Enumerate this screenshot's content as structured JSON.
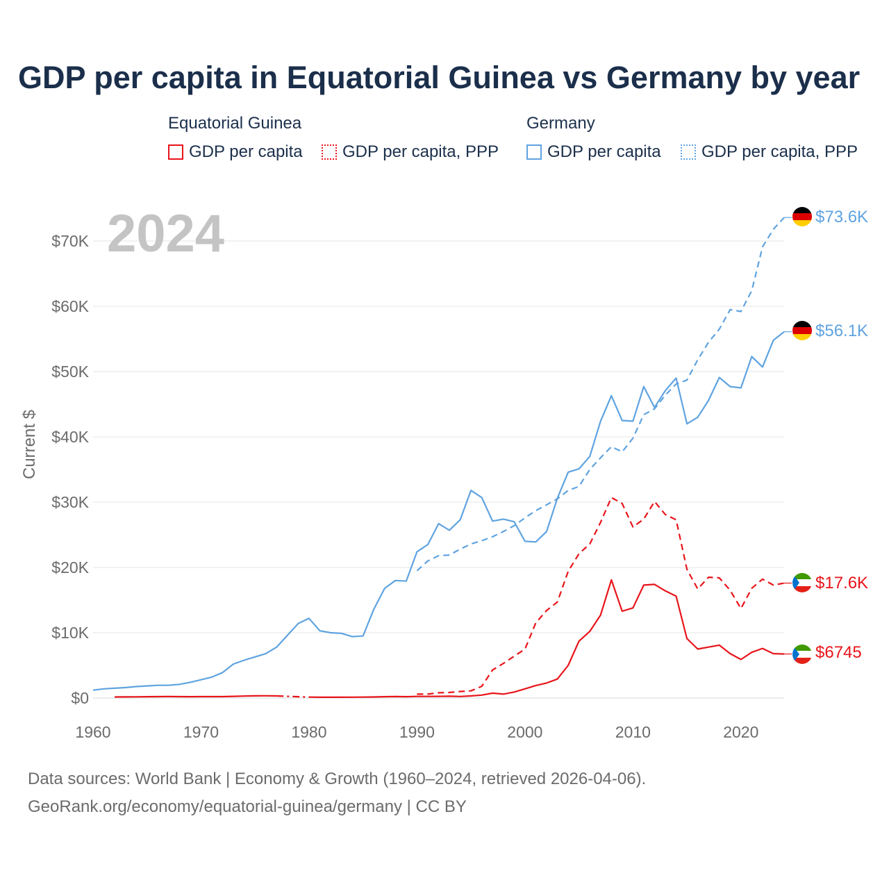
{
  "title": "GDP per capita in Equatorial Guinea vs Germany by year",
  "legend": {
    "groups": [
      {
        "name": "Equatorial Guinea",
        "items": [
          "GDP per capita",
          "GDP per capita, PPP"
        ]
      },
      {
        "name": "Germany",
        "items": [
          "GDP per capita",
          "GDP per capita, PPP"
        ]
      }
    ]
  },
  "year_watermark": "2024",
  "end_labels": {
    "de_ppp": "$73.6K",
    "de_gdp": "$56.1K",
    "eq_ppp": "$17.6K",
    "eq_gdp": "$6745"
  },
  "footer": {
    "line1": "Data sources: World Bank | Economy & Growth (1960–2024, retrieved 2026-04-06).",
    "line2": "GeoRank.org/economy/equatorial-guinea/germany | CC BY"
  },
  "colors": {
    "title": "#1b2f4b",
    "equatorial_guinea": "#e8141a",
    "germany": "#5fa3e0",
    "axis_text": "#6b6b6b",
    "grid": "#e6e6e6",
    "watermark": "#c4c4c4"
  },
  "chart_data": {
    "type": "line",
    "title": "GDP per capita in Equatorial Guinea vs Germany by year",
    "ylabel": "Current $",
    "xlabel": "",
    "xlim": [
      1960,
      2024
    ],
    "ylim": [
      0,
      70000
    ],
    "x_ticks": [
      1960,
      1970,
      1980,
      1990,
      2000,
      2010,
      2020
    ],
    "x_tick_labels": [
      "1960",
      "1970",
      "1980",
      "1990",
      "2000",
      "2010",
      "2020"
    ],
    "y_ticks": [
      0,
      10000,
      20000,
      30000,
      40000,
      50000,
      60000,
      70000
    ],
    "y_tick_labels": [
      "$0",
      "$10K",
      "$20K",
      "$30K",
      "$40K",
      "$50K",
      "$60K",
      "$70K"
    ],
    "grid": true,
    "legend_position": "top",
    "series": [
      {
        "name": "Germany GDP per capita",
        "country": "Germany",
        "style": "solid",
        "x": [
          1960,
          1961,
          1962,
          1963,
          1964,
          1965,
          1966,
          1967,
          1968,
          1969,
          1970,
          1971,
          1972,
          1973,
          1974,
          1975,
          1976,
          1977,
          1978,
          1979,
          1980,
          1981,
          1982,
          1983,
          1984,
          1985,
          1986,
          1987,
          1988,
          1989,
          1990,
          1991,
          1992,
          1993,
          1994,
          1995,
          1996,
          1997,
          1998,
          1999,
          2000,
          2001,
          2002,
          2003,
          2004,
          2005,
          2006,
          2007,
          2008,
          2009,
          2010,
          2011,
          2012,
          2013,
          2014,
          2015,
          2016,
          2017,
          2018,
          2019,
          2020,
          2021,
          2022,
          2023,
          2024
        ],
        "values": [
          1200,
          1400,
          1500,
          1600,
          1750,
          1850,
          1950,
          1950,
          2100,
          2400,
          2800,
          3200,
          3900,
          5200,
          5800,
          6300,
          6800,
          7800,
          9600,
          11400,
          12200,
          10300,
          10000,
          9900,
          9400,
          9500,
          13600,
          16800,
          18000,
          17900,
          22400,
          23500,
          26700,
          25700,
          27300,
          31800,
          30700,
          27100,
          27400,
          27000,
          24000,
          23900,
          25500,
          30600,
          34600,
          35100,
          37000,
          42400,
          46300,
          42500,
          42400,
          47700,
          44500,
          47100,
          49000,
          42000,
          43000,
          45600,
          49100,
          47700,
          47500,
          52300,
          50700,
          54800,
          56100
        ]
      },
      {
        "name": "Germany GDP per capita, PPP",
        "country": "Germany",
        "style": "dashed",
        "x": [
          1990,
          1991,
          1992,
          1993,
          1994,
          1995,
          1996,
          1997,
          1998,
          1999,
          2000,
          2001,
          2002,
          2003,
          2004,
          2005,
          2006,
          2007,
          2008,
          2009,
          2010,
          2011,
          2012,
          2013,
          2014,
          2015,
          2016,
          2017,
          2018,
          2019,
          2020,
          2021,
          2022,
          2023,
          2024
        ],
        "values": [
          19500,
          21000,
          21800,
          21900,
          22800,
          23600,
          24100,
          24700,
          25500,
          26400,
          27600,
          28700,
          29600,
          30500,
          31800,
          32400,
          35000,
          36800,
          38500,
          37700,
          39800,
          43400,
          44300,
          46400,
          48100,
          48700,
          51800,
          54500,
          56500,
          59500,
          59200,
          62400,
          69100,
          71800,
          73600
        ]
      },
      {
        "name": "Equatorial Guinea GDP per capita",
        "country": "Equatorial Guinea",
        "style": "solid",
        "x": [
          1962,
          1963,
          1964,
          1965,
          1966,
          1967,
          1968,
          1969,
          1970,
          1971,
          1972,
          1973,
          1974,
          1975,
          1976,
          1977,
          1978,
          1979,
          1980,
          1981,
          1982,
          1983,
          1984,
          1985,
          1986,
          1987,
          1988,
          1989,
          1990,
          1991,
          1992,
          1993,
          1994,
          1995,
          1996,
          1997,
          1998,
          1999,
          2000,
          2001,
          2002,
          2003,
          2004,
          2005,
          2006,
          2007,
          2008,
          2009,
          2010,
          2011,
          2012,
          2013,
          2014,
          2015,
          2016,
          2017,
          2018,
          2019,
          2020,
          2021,
          2022,
          2023,
          2024
        ],
        "values": [
          160,
          170,
          180,
          200,
          210,
          220,
          210,
          200,
          210,
          210,
          210,
          250,
          300,
          330,
          340,
          320,
          null,
          null,
          140,
          120,
          120,
          120,
          130,
          140,
          160,
          200,
          220,
          200,
          240,
          240,
          260,
          280,
          230,
          320,
          450,
          750,
          600,
          920,
          1400,
          1900,
          2300,
          2900,
          5000,
          8700,
          10200,
          12700,
          18100,
          13300,
          13800,
          17300,
          17400,
          16400,
          15600,
          9100,
          7500,
          7800,
          8100,
          6800,
          5900,
          7000,
          7600,
          6800,
          6745
        ]
      },
      {
        "name": "Equatorial Guinea GDP per capita (estimated gap)",
        "country": "Equatorial Guinea",
        "style": "dashdot",
        "x": [
          1977,
          1978,
          1979,
          1980
        ],
        "values": [
          320,
          260,
          200,
          140
        ]
      },
      {
        "name": "Equatorial Guinea GDP per capita, PPP",
        "country": "Equatorial Guinea",
        "style": "dashed",
        "x": [
          1990,
          1991,
          1992,
          1993,
          1994,
          1995,
          1996,
          1997,
          1998,
          1999,
          2000,
          2001,
          2002,
          2003,
          2004,
          2005,
          2006,
          2007,
          2008,
          2009,
          2010,
          2011,
          2012,
          2013,
          2014,
          2015,
          2016,
          2017,
          2018,
          2019,
          2020,
          2021,
          2022,
          2023,
          2024
        ],
        "values": [
          600,
          600,
          800,
          850,
          1000,
          1100,
          1800,
          4300,
          5300,
          6400,
          7500,
          11500,
          13400,
          14700,
          19400,
          22100,
          23600,
          26900,
          30700,
          29800,
          26200,
          27400,
          30100,
          28100,
          27300,
          19700,
          16700,
          18500,
          18400,
          16500,
          13700,
          16800,
          18200,
          17300,
          17600
        ]
      }
    ]
  }
}
